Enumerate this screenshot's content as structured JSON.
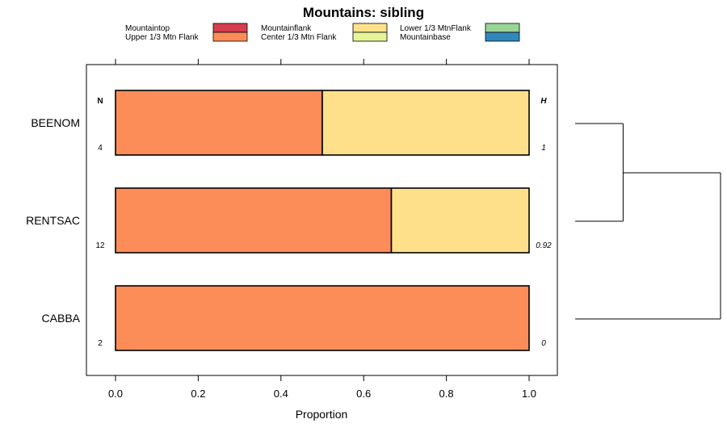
{
  "chart_data": {
    "type": "bar",
    "orientation": "horizontal",
    "stacked": true,
    "title": "Mountains: sibling",
    "xlabel": "Proportion",
    "ylabel": "",
    "xlim": [
      0,
      1
    ],
    "x_ticks": [
      "0.0",
      "0.2",
      "0.4",
      "0.6",
      "0.8",
      "1.0"
    ],
    "x_tick_values": [
      0,
      0.2,
      0.4,
      0.6,
      0.8,
      1.0
    ],
    "categories": [
      "BEENOM",
      "RENTSAC",
      "CABBA"
    ],
    "series": [
      {
        "name": "Mountaintop",
        "color": "#d53e4f",
        "values": [
          0,
          0,
          0
        ]
      },
      {
        "name": "Upper 1/3 Mtn Flank",
        "color": "#fc8d59",
        "values": [
          0.5,
          0.667,
          1.0
        ]
      },
      {
        "name": "Mountainflank",
        "color": "#fee08b",
        "values": [
          0.5,
          0.333,
          0
        ]
      },
      {
        "name": "Center 1/3 Mtn Flank",
        "color": "#e6f598",
        "values": [
          0,
          0,
          0
        ]
      },
      {
        "name": "Lower 1/3 MtnFlank",
        "color": "#99d594",
        "values": [
          0,
          0,
          0
        ]
      },
      {
        "name": "Mountainbase",
        "color": "#3288bd",
        "values": [
          0,
          0,
          0
        ]
      }
    ],
    "n_header": "N",
    "h_header": "H",
    "n_values": [
      "4",
      "12",
      "2"
    ],
    "h_values": [
      "1",
      "0.92",
      "0"
    ],
    "dendrogram": {
      "leaves": [
        "BEENOM",
        "RENTSAC",
        "CABBA"
      ],
      "merges": [
        {
          "left": "BEENOM",
          "right": "RENTSAC",
          "height": 0.33
        },
        {
          "left": "BEENOM+RENTSAC",
          "right": "CABBA",
          "height": 1.0
        }
      ]
    },
    "legend_position": "top",
    "grid": false
  }
}
